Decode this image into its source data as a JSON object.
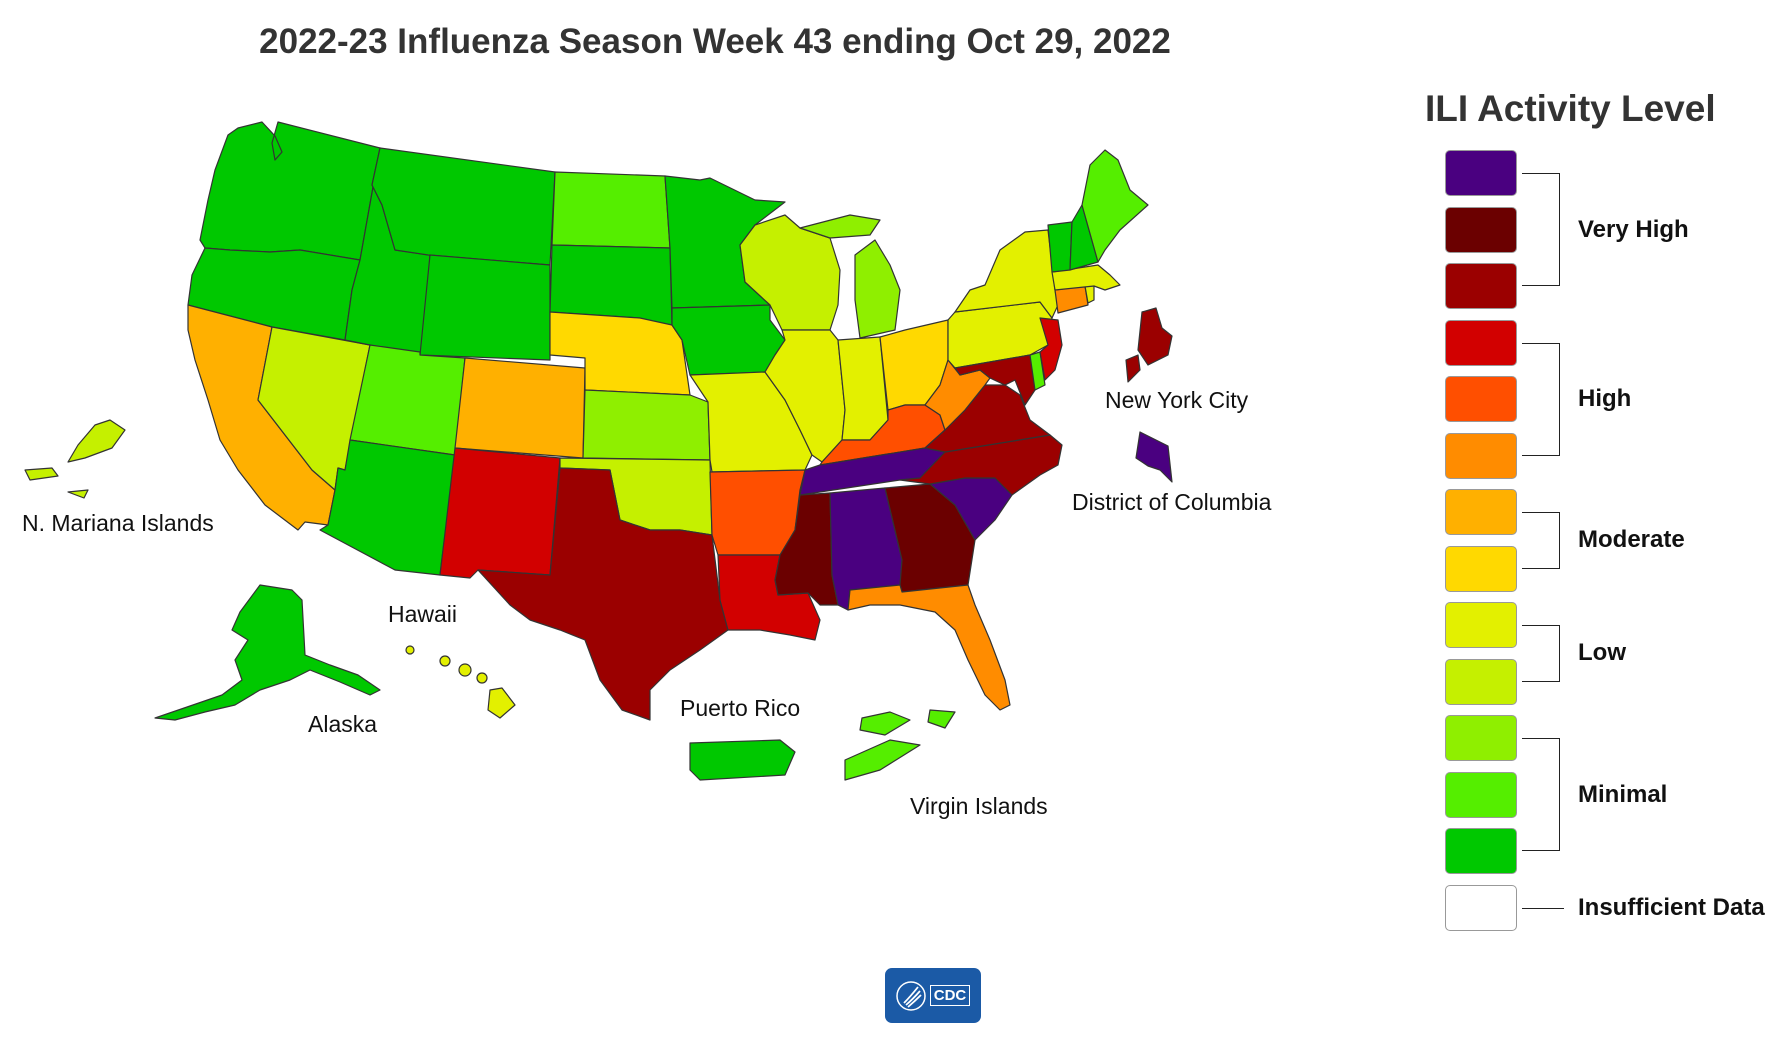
{
  "title": "2022-23 Influenza Season Week 43 ending Oct 29, 2022",
  "legend": {
    "title": "ILI Activity Level",
    "levels": [
      {
        "level": 13,
        "color": "#4a0080"
      },
      {
        "level": 12,
        "color": "#6b0000"
      },
      {
        "level": 11,
        "color": "#9b0000"
      },
      {
        "level": 10,
        "color": "#d20000"
      },
      {
        "level": 9,
        "color": "#ff4f00"
      },
      {
        "level": 8,
        "color": "#ff8c00"
      },
      {
        "level": 7,
        "color": "#ffb000"
      },
      {
        "level": 6,
        "color": "#ffd900"
      },
      {
        "level": 5,
        "color": "#e3f000"
      },
      {
        "level": 4,
        "color": "#c5f000"
      },
      {
        "level": 3,
        "color": "#8fef00"
      },
      {
        "level": 2,
        "color": "#55ee00"
      },
      {
        "level": 1,
        "color": "#00c800"
      },
      {
        "level": 0,
        "color": "#ffffff"
      }
    ],
    "groups": [
      {
        "label": "Very High",
        "levels": [
          11,
          13
        ]
      },
      {
        "label": "High",
        "levels": [
          8,
          10
        ]
      },
      {
        "label": "Moderate",
        "levels": [
          6,
          7
        ]
      },
      {
        "label": "Low",
        "levels": [
          4,
          5
        ]
      },
      {
        "label": "Minimal",
        "levels": [
          1,
          3
        ]
      },
      {
        "label": "Insufficient Data",
        "levels": [
          0,
          0
        ]
      }
    ]
  },
  "labels": {
    "nmi": "N. Mariana Islands",
    "hawaii": "Hawaii",
    "alaska": "Alaska",
    "puerto_rico": "Puerto Rico",
    "virgin_islands": "Virgin Islands",
    "nyc": "New York City",
    "dc": "District of Columbia"
  },
  "logo": "CDC",
  "activity": {
    "WA": 1,
    "OR": 1,
    "CA": 7,
    "NV": 4,
    "ID": 1,
    "MT": 1,
    "WY": 1,
    "UT": 2,
    "AZ": 1,
    "CO": 7,
    "NM": 10,
    "ND": 2,
    "SD": 1,
    "NE": 6,
    "KS": 3,
    "OK": 4,
    "TX": 11,
    "MN": 1,
    "IA": 1,
    "MO": 5,
    "AR": 9,
    "LA": 10,
    "WI": 4,
    "IL": 5,
    "MI": 3,
    "IN": 5,
    "OH": 6,
    "KY": 9,
    "TN": 13,
    "MS": 12,
    "AL": 13,
    "GA": 12,
    "FL": 8,
    "SC": 13,
    "NC": 11,
    "VA": 11,
    "WV": 8,
    "MD": 11,
    "DE": 2,
    "NJ": 10,
    "PA": 5,
    "NY": 5,
    "CT": 8,
    "RI": 5,
    "MA": 5,
    "VT": 1,
    "NH": 1,
    "ME": 2,
    "AK": 1,
    "HI": 5,
    "PR": 1,
    "VI": 2,
    "MP": 4,
    "NYC": 11,
    "DC": 13
  }
}
